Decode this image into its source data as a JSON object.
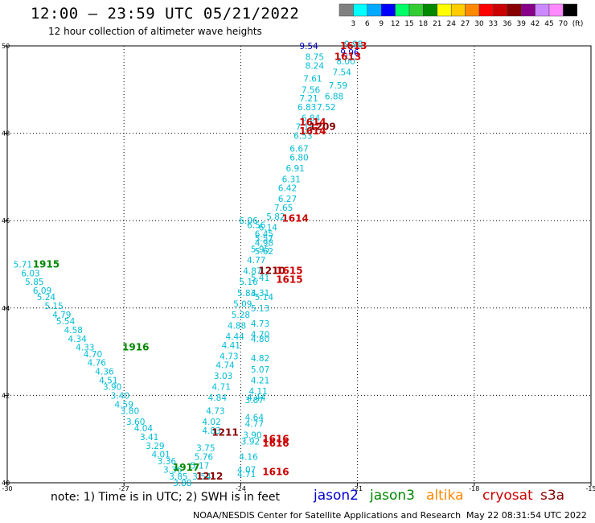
{
  "header": {
    "title": "12:00 – 23:59 UTC 05/21/2022",
    "subtitle": "12 hour collection of altimeter wave heights"
  },
  "colorbar": {
    "colors": [
      "#808080",
      "#00ffff",
      "#00aaff",
      "#0000ff",
      "#00ff66",
      "#33cc33",
      "#008800",
      "#ffff00",
      "#ffcc00",
      "#ff8800",
      "#ff0000",
      "#cc0000",
      "#880000",
      "#880088",
      "#cc88ff",
      "#ff88ff",
      "#000000"
    ],
    "labels": [
      "3",
      "6",
      "9",
      "12",
      "15",
      "18",
      "21",
      "24",
      "27",
      "30",
      "33",
      "36",
      "39",
      "42",
      "45",
      "70"
    ],
    "unit": "(ft)"
  },
  "footer": {
    "note": "note:  1) Time is in UTC;  2) SWH is in feet",
    "satellites": [
      {
        "name": "jason2",
        "color": "#0000cc"
      },
      {
        "name": "jason3",
        "color": "#008800"
      },
      {
        "name": "altika",
        "color": "#ff8800"
      },
      {
        "name": "cryosat",
        "color": "#cc0000"
      },
      {
        "name": "s3a",
        "color": "#880000"
      }
    ],
    "credit": "NOAA/NESDIS Center for Satellite Applications and Research",
    "timestamp": "May 22 08:31:54 UTC 2022"
  },
  "chart_data": {
    "type": "scatter",
    "xlim": [
      -30,
      -15
    ],
    "ylim": [
      40,
      50
    ],
    "xticks": [
      -30,
      -27,
      -24,
      -21,
      -18,
      -15
    ],
    "yticks": [
      40,
      42,
      44,
      46,
      48,
      50
    ],
    "xtick_labels": [
      "-30",
      "-27",
      "-24",
      "-21",
      "-18",
      "-15"
    ],
    "ytick_labels": [
      "40",
      "42",
      "44",
      "46",
      "48",
      "50"
    ],
    "grid": true,
    "points": [
      {
        "lon": -29.6,
        "lat": 45.0,
        "text": "5.71",
        "color": "#00bcd4"
      },
      {
        "lon": -29.4,
        "lat": 44.8,
        "text": "6.03",
        "color": "#00bcd4"
      },
      {
        "lon": -29.3,
        "lat": 44.6,
        "text": "5.85",
        "color": "#00bcd4"
      },
      {
        "lon": -29.1,
        "lat": 44.4,
        "text": "6.09",
        "color": "#00bcd4"
      },
      {
        "lon": -29.0,
        "lat": 44.25,
        "text": "5.24",
        "color": "#00bcd4"
      },
      {
        "lon": -28.8,
        "lat": 44.05,
        "text": "5.15",
        "color": "#00bcd4"
      },
      {
        "lon": -28.6,
        "lat": 43.85,
        "text": "4.79",
        "color": "#00bcd4"
      },
      {
        "lon": -28.5,
        "lat": 43.7,
        "text": "5.54",
        "color": "#00bcd4"
      },
      {
        "lon": -28.3,
        "lat": 43.5,
        "text": "4.58",
        "color": "#00bcd4"
      },
      {
        "lon": -28.2,
        "lat": 43.3,
        "text": "4.34",
        "color": "#00bcd4"
      },
      {
        "lon": -28.0,
        "lat": 43.1,
        "text": "4.33",
        "color": "#00bcd4"
      },
      {
        "lon": -27.8,
        "lat": 42.95,
        "text": "4.70",
        "color": "#00bcd4"
      },
      {
        "lon": -27.7,
        "lat": 42.75,
        "text": "4.76",
        "color": "#00bcd4"
      },
      {
        "lon": -27.5,
        "lat": 42.55,
        "text": "4.36",
        "color": "#00bcd4"
      },
      {
        "lon": -27.4,
        "lat": 42.35,
        "text": "4.51",
        "color": "#00bcd4"
      },
      {
        "lon": -27.3,
        "lat": 42.2,
        "text": "3.90",
        "color": "#00bcd4"
      },
      {
        "lon": -27.1,
        "lat": 42.0,
        "text": "3.40",
        "color": "#00bcd4"
      },
      {
        "lon": -27.0,
        "lat": 41.8,
        "text": "4.59",
        "color": "#00bcd4"
      },
      {
        "lon": -26.85,
        "lat": 41.65,
        "text": "3.80",
        "color": "#00bcd4"
      },
      {
        "lon": -26.7,
        "lat": 41.4,
        "text": "3.60",
        "color": "#00bcd4"
      },
      {
        "lon": -26.5,
        "lat": 41.25,
        "text": "4.04",
        "color": "#00bcd4"
      },
      {
        "lon": -26.35,
        "lat": 41.05,
        "text": "3.41",
        "color": "#00bcd4"
      },
      {
        "lon": -26.2,
        "lat": 40.85,
        "text": "3.29",
        "color": "#00bcd4"
      },
      {
        "lon": -26.05,
        "lat": 40.65,
        "text": "4.01",
        "color": "#00bcd4"
      },
      {
        "lon": -25.9,
        "lat": 40.5,
        "text": "3.36",
        "color": "#00bcd4"
      },
      {
        "lon": -25.75,
        "lat": 40.3,
        "text": "3.36",
        "color": "#00bcd4"
      },
      {
        "lon": -25.6,
        "lat": 40.15,
        "text": "3.85",
        "color": "#00bcd4"
      },
      {
        "lon": -25.5,
        "lat": 40.0,
        "text": "3.88",
        "color": "#00bcd4"
      },
      {
        "lon": -25.0,
        "lat": 40.15,
        "text": "3.54",
        "color": "#00bcd4"
      },
      {
        "lon": -25.05,
        "lat": 40.4,
        "text": "5.17",
        "color": "#00bcd4"
      },
      {
        "lon": -24.95,
        "lat": 40.6,
        "text": "5.76",
        "color": "#00bcd4"
      },
      {
        "lon": -24.9,
        "lat": 40.8,
        "text": "3.75",
        "color": "#00bcd4"
      },
      {
        "lon": -24.75,
        "lat": 41.2,
        "text": "4.83",
        "color": "#00bcd4"
      },
      {
        "lon": -24.75,
        "lat": 41.4,
        "text": "4.02",
        "color": "#00bcd4"
      },
      {
        "lon": -24.65,
        "lat": 41.65,
        "text": "4.73",
        "color": "#00bcd4"
      },
      {
        "lon": -24.6,
        "lat": 41.95,
        "text": "4.84",
        "color": "#00bcd4"
      },
      {
        "lon": -24.5,
        "lat": 42.2,
        "text": "4.71",
        "color": "#00bcd4"
      },
      {
        "lon": -24.45,
        "lat": 42.45,
        "text": "3.03",
        "color": "#00bcd4"
      },
      {
        "lon": -24.4,
        "lat": 42.7,
        "text": "4.74",
        "color": "#00bcd4"
      },
      {
        "lon": -24.3,
        "lat": 42.9,
        "text": "4.73",
        "color": "#00bcd4"
      },
      {
        "lon": -24.25,
        "lat": 43.15,
        "text": "4.41",
        "color": "#00bcd4"
      },
      {
        "lon": -24.15,
        "lat": 43.35,
        "text": "4.44",
        "color": "#00bcd4"
      },
      {
        "lon": -24.1,
        "lat": 43.6,
        "text": "4.88",
        "color": "#00bcd4"
      },
      {
        "lon": -24.0,
        "lat": 43.85,
        "text": "5.28",
        "color": "#00bcd4"
      },
      {
        "lon": -23.95,
        "lat": 44.1,
        "text": "5.09",
        "color": "#00bcd4"
      },
      {
        "lon": -23.85,
        "lat": 44.35,
        "text": "5.83",
        "color": "#00bcd4"
      },
      {
        "lon": -23.8,
        "lat": 44.6,
        "text": "5.16",
        "color": "#00bcd4"
      },
      {
        "lon": -23.7,
        "lat": 44.85,
        "text": "4.87",
        "color": "#00bcd4"
      },
      {
        "lon": -23.6,
        "lat": 45.1,
        "text": "4.77",
        "color": "#00bcd4"
      },
      {
        "lon": -23.5,
        "lat": 45.35,
        "text": "5.95",
        "color": "#00bcd4"
      },
      {
        "lon": -23.4,
        "lat": 45.6,
        "text": "5.57",
        "color": "#00bcd4"
      },
      {
        "lon": -23.3,
        "lat": 45.85,
        "text": "6.14",
        "color": "#00bcd4"
      },
      {
        "lon": -23.1,
        "lat": 46.1,
        "text": "5.82",
        "color": "#00bcd4"
      },
      {
        "lon": -22.9,
        "lat": 46.3,
        "text": "7.65",
        "color": "#00bcd4"
      },
      {
        "lon": -22.8,
        "lat": 46.5,
        "text": "6.27",
        "color": "#00bcd4"
      },
      {
        "lon": -22.8,
        "lat": 46.75,
        "text": "6.42",
        "color": "#00bcd4"
      },
      {
        "lon": -22.7,
        "lat": 46.95,
        "text": "6.31",
        "color": "#00bcd4"
      },
      {
        "lon": -22.6,
        "lat": 47.2,
        "text": "6.91",
        "color": "#00bcd4"
      },
      {
        "lon": -22.5,
        "lat": 47.45,
        "text": "6.80",
        "color": "#00bcd4"
      },
      {
        "lon": -22.5,
        "lat": 47.65,
        "text": "6.67",
        "color": "#00bcd4"
      },
      {
        "lon": -22.4,
        "lat": 47.95,
        "text": "6.53",
        "color": "#00bcd4"
      },
      {
        "lon": -22.35,
        "lat": 48.15,
        "text": "7.18",
        "color": "#00bcd4"
      },
      {
        "lon": -22.2,
        "lat": 48.35,
        "text": "6.84",
        "color": "#00bcd4"
      },
      {
        "lon": -22.3,
        "lat": 48.6,
        "text": "6.83",
        "color": "#00bcd4"
      },
      {
        "lon": -22.25,
        "lat": 48.8,
        "text": "7.21",
        "color": "#00bcd4"
      },
      {
        "lon": -22.2,
        "lat": 49.0,
        "text": "7.56",
        "color": "#00bcd4"
      },
      {
        "lon": -22.15,
        "lat": 49.25,
        "text": "7.61",
        "color": "#00bcd4"
      },
      {
        "lon": -22.1,
        "lat": 49.55,
        "text": "8.24",
        "color": "#00bcd4"
      },
      {
        "lon": -22.1,
        "lat": 49.75,
        "text": "8.75",
        "color": "#00bcd4"
      },
      {
        "lon": -22.25,
        "lat": 50.0,
        "text": "9.54",
        "color": "#0000cc"
      },
      {
        "lon": -21.8,
        "lat": 48.6,
        "text": "7.52",
        "color": "#00bcd4"
      },
      {
        "lon": -21.6,
        "lat": 48.85,
        "text": "6.88",
        "color": "#00bcd4"
      },
      {
        "lon": -21.5,
        "lat": 49.1,
        "text": "7.59",
        "color": "#00bcd4"
      },
      {
        "lon": -21.4,
        "lat": 49.4,
        "text": "7.54",
        "color": "#00bcd4"
      },
      {
        "lon": -21.3,
        "lat": 49.65,
        "text": "8.00",
        "color": "#00bcd4"
      },
      {
        "lon": -21.2,
        "lat": 49.85,
        "text": "9.96",
        "color": "#0000cc"
      },
      {
        "lon": -21.1,
        "lat": 50.05,
        "text": "9.98",
        "color": "#00bcd4"
      },
      {
        "lon": -23.8,
        "lat": 46.0,
        "text": "6.06",
        "color": "#00bcd4"
      },
      {
        "lon": -23.6,
        "lat": 45.9,
        "text": "6.56",
        "color": "#00bcd4"
      },
      {
        "lon": -23.4,
        "lat": 45.7,
        "text": "6.45",
        "color": "#00bcd4"
      },
      {
        "lon": -23.4,
        "lat": 45.5,
        "text": "4.98",
        "color": "#00bcd4"
      },
      {
        "lon": -23.4,
        "lat": 45.3,
        "text": "5.62",
        "color": "#00bcd4"
      },
      {
        "lon": -23.5,
        "lat": 44.7,
        "text": "5.41",
        "color": "#00bcd4"
      },
      {
        "lon": -23.5,
        "lat": 44.35,
        "text": "4.31",
        "color": "#00bcd4"
      },
      {
        "lon": -23.4,
        "lat": 44.25,
        "text": "5.14",
        "color": "#00bcd4"
      },
      {
        "lon": -23.5,
        "lat": 44.0,
        "text": "5.13",
        "color": "#00bcd4"
      },
      {
        "lon": -23.5,
        "lat": 43.65,
        "text": "4.73",
        "color": "#00bcd4"
      },
      {
        "lon": -23.5,
        "lat": 43.4,
        "text": "4.70",
        "color": "#00bcd4"
      },
      {
        "lon": -23.5,
        "lat": 43.3,
        "text": "4.80",
        "color": "#00bcd4"
      },
      {
        "lon": -23.5,
        "lat": 42.85,
        "text": "4.82",
        "color": "#00bcd4"
      },
      {
        "lon": -23.5,
        "lat": 42.6,
        "text": "5.07",
        "color": "#00bcd4"
      },
      {
        "lon": -23.5,
        "lat": 42.35,
        "text": "4.21",
        "color": "#00bcd4"
      },
      {
        "lon": -23.55,
        "lat": 42.1,
        "text": "4.11",
        "color": "#00bcd4"
      },
      {
        "lon": -23.6,
        "lat": 41.95,
        "text": "4.44",
        "color": "#00bcd4"
      },
      {
        "lon": -23.65,
        "lat": 41.9,
        "text": "3.87",
        "color": "#00bcd4"
      },
      {
        "lon": -23.65,
        "lat": 41.5,
        "text": "4.64",
        "color": "#00bcd4"
      },
      {
        "lon": -23.65,
        "lat": 41.35,
        "text": "4.77",
        "color": "#00bcd4"
      },
      {
        "lon": -23.7,
        "lat": 41.1,
        "text": "3.90",
        "color": "#00bcd4"
      },
      {
        "lon": -23.75,
        "lat": 40.95,
        "text": "3.92",
        "color": "#00bcd4"
      },
      {
        "lon": -23.8,
        "lat": 40.6,
        "text": "4.16",
        "color": "#00bcd4"
      },
      {
        "lon": -23.85,
        "lat": 40.3,
        "text": "4.07",
        "color": "#00bcd4"
      },
      {
        "lon": -23.85,
        "lat": 40.2,
        "text": "4.71",
        "color": "#00bcd4"
      }
    ],
    "time_labels": [
      {
        "lon": -29.0,
        "lat": 45.0,
        "text": "1915",
        "color": "#008800"
      },
      {
        "lon": -26.7,
        "lat": 43.1,
        "text": "1916",
        "color": "#008800"
      },
      {
        "lon": -25.4,
        "lat": 40.35,
        "text": "1917",
        "color": "#008800"
      },
      {
        "lon": -24.8,
        "lat": 40.15,
        "text": "1212",
        "color": "#880000"
      },
      {
        "lon": -24.4,
        "lat": 41.15,
        "text": "1211",
        "color": "#880000"
      },
      {
        "lon": -23.2,
        "lat": 44.85,
        "text": "1210",
        "color": "#880000"
      },
      {
        "lon": -22.75,
        "lat": 44.85,
        "text": "1615",
        "color": "#cc0000"
      },
      {
        "lon": -22.75,
        "lat": 44.65,
        "text": "1615",
        "color": "#cc0000"
      },
      {
        "lon": -22.6,
        "lat": 46.05,
        "text": "1614",
        "color": "#cc0000"
      },
      {
        "lon": -22.15,
        "lat": 48.25,
        "text": "1614",
        "color": "#cc0000"
      },
      {
        "lon": -21.9,
        "lat": 48.15,
        "text": "1209",
        "color": "#880000"
      },
      {
        "lon": -22.15,
        "lat": 48.05,
        "text": "1614",
        "color": "#cc0000"
      },
      {
        "lon": -21.1,
        "lat": 50.0,
        "text": "1613",
        "color": "#cc0000"
      },
      {
        "lon": -21.25,
        "lat": 49.75,
        "text": "1613",
        "color": "#cc0000"
      },
      {
        "lon": -23.1,
        "lat": 41.0,
        "text": "1616",
        "color": "#cc0000"
      },
      {
        "lon": -23.1,
        "lat": 40.9,
        "text": "1616",
        "color": "#cc0000"
      },
      {
        "lon": -23.1,
        "lat": 40.25,
        "text": "1616",
        "color": "#cc0000"
      }
    ]
  }
}
